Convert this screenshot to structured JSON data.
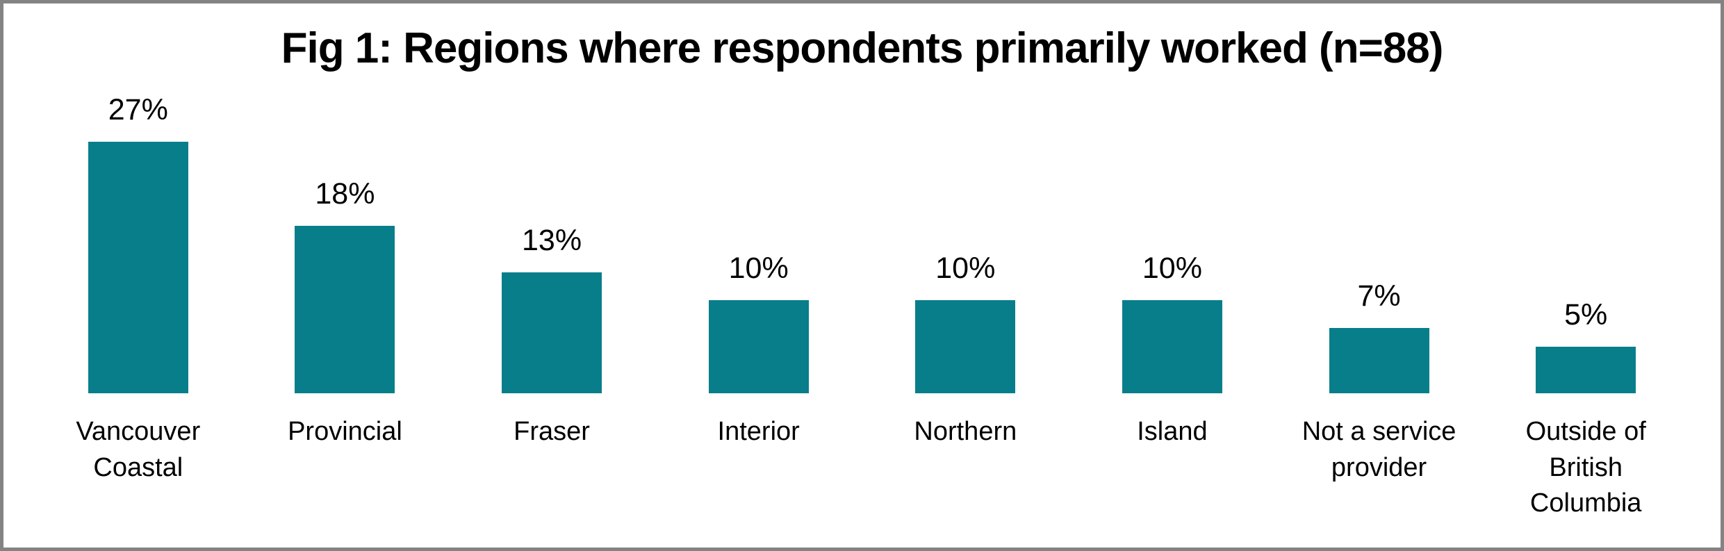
{
  "figure": {
    "frame_color": "#838383",
    "background_color": "#ffffff"
  },
  "chart_data": {
    "type": "bar",
    "title": "Fig 1: Regions where respondents primarily worked (n=88)",
    "categories": [
      "Vancouver Coastal",
      "Provincial",
      "Fraser",
      "Interior",
      "Northern",
      "Island",
      "Not a service provider",
      "Outside of British Columbia"
    ],
    "values": [
      27,
      18,
      13,
      10,
      10,
      10,
      7,
      5
    ],
    "data_labels": [
      "27%",
      "18%",
      "13%",
      "10%",
      "10%",
      "10%",
      "7%",
      "5%"
    ],
    "unit": "%",
    "bar_color": "#087e8b",
    "xlabel": "",
    "ylabel": "",
    "ylim": [
      0,
      30
    ],
    "y_axis_visible": false,
    "x_axis_line_visible": false,
    "gridlines": false,
    "legend_position": "none"
  }
}
